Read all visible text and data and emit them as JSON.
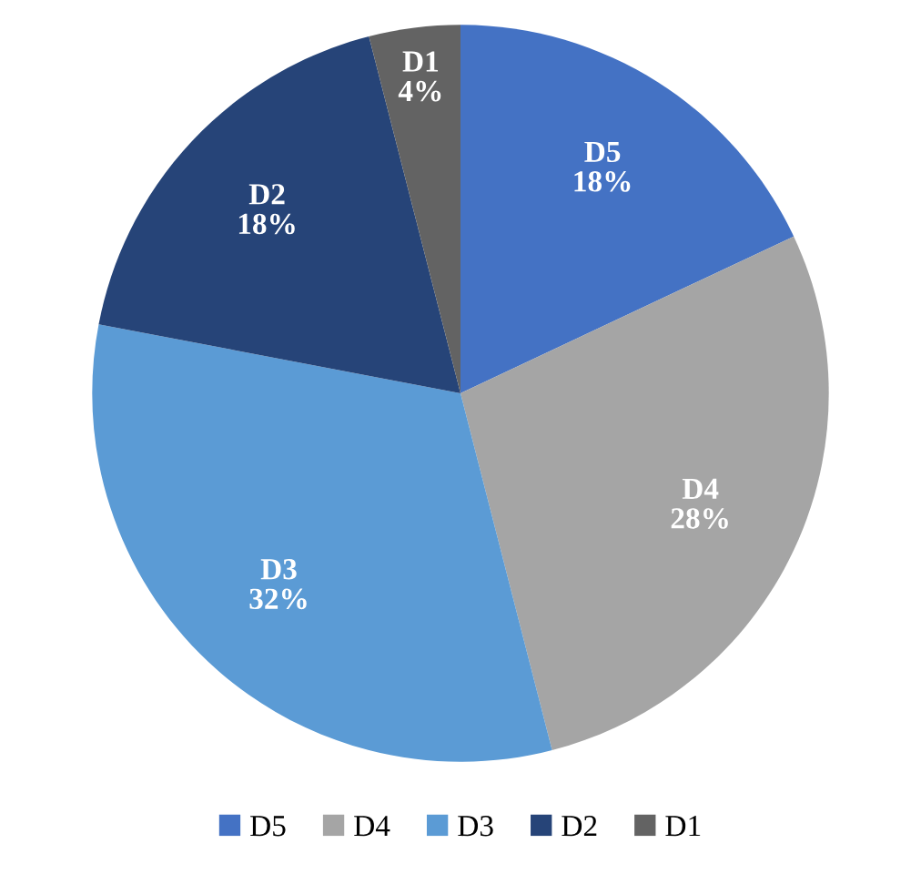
{
  "chart_data": {
    "type": "pie",
    "categories": [
      "D5",
      "D4",
      "D3",
      "D2",
      "D1"
    ],
    "values": [
      18,
      28,
      32,
      18,
      4
    ],
    "colors": [
      "#4472c4",
      "#a5a5a5",
      "#5b9bd5",
      "#264478",
      "#636363"
    ],
    "value_labels": [
      "18%",
      "28%",
      "32%",
      "18%",
      "4%"
    ],
    "legend": "bottom"
  }
}
